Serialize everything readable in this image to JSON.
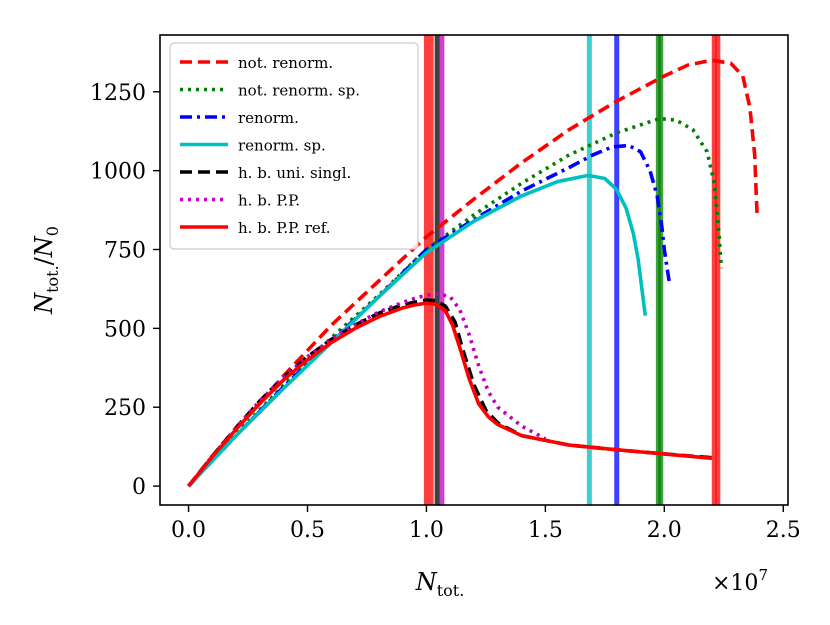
{
  "chart_data": {
    "type": "line",
    "title": "",
    "xlabel_main": "N",
    "xlabel_sub": "tot.",
    "ylabel_num_main": "N",
    "ylabel_num_sub": "tot.",
    "ylabel_den_main": "N",
    "ylabel_den_sub": "0",
    "x_scale_base": "×10",
    "x_scale_exp": "7",
    "xlim": [
      -0.12,
      2.52
    ],
    "ylim": [
      -60,
      1430
    ],
    "xticks": [
      0.0,
      0.5,
      1.0,
      1.5,
      2.0,
      2.5
    ],
    "xtick_labels": [
      "0.0",
      "0.5",
      "1.0",
      "1.5",
      "2.0",
      "2.5"
    ],
    "yticks": [
      0,
      250,
      500,
      750,
      1000,
      1250
    ],
    "ytick_labels": [
      "0",
      "250",
      "500",
      "750",
      "1000",
      "1250"
    ],
    "legend_position": "top-left",
    "series": [
      {
        "name": "not. renorm.",
        "color": "#ff0000",
        "dash": "dashed",
        "x": [
          0,
          0.2,
          0.4,
          0.6,
          0.8,
          1.0,
          1.2,
          1.4,
          1.6,
          1.8,
          2.0,
          2.1,
          2.2,
          2.28,
          2.33,
          2.36,
          2.38,
          2.385,
          2.39
        ],
        "y": [
          0,
          180,
          350,
          510,
          650,
          790,
          910,
          1025,
          1130,
          1220,
          1300,
          1335,
          1350,
          1340,
          1300,
          1200,
          1050,
          950,
          860
        ]
      },
      {
        "name": "not. renorm. sp.",
        "color": "#008000",
        "dash": "dotted",
        "x": [
          0,
          0.2,
          0.4,
          0.6,
          0.8,
          1.0,
          1.2,
          1.4,
          1.6,
          1.8,
          1.9,
          1.98,
          2.05,
          2.12,
          2.18,
          2.21,
          2.23,
          2.24
        ],
        "y": [
          0,
          165,
          320,
          470,
          605,
          750,
          860,
          960,
          1050,
          1120,
          1145,
          1165,
          1160,
          1130,
          1060,
          960,
          800,
          690
        ]
      },
      {
        "name": "renorm.",
        "color": "#0000ff",
        "dash": "dashdot",
        "x": [
          0,
          0.2,
          0.4,
          0.6,
          0.8,
          1.0,
          1.2,
          1.4,
          1.6,
          1.7,
          1.78,
          1.85,
          1.9,
          1.94,
          1.97,
          1.99,
          2.0,
          2.01,
          2.02
        ],
        "y": [
          0,
          160,
          315,
          460,
          600,
          750,
          845,
          935,
          1010,
          1050,
          1075,
          1080,
          1060,
          1000,
          920,
          820,
          750,
          700,
          650
        ]
      },
      {
        "name": "renorm. sp.",
        "color": "#00bfbf",
        "dash": "solid",
        "x": [
          0,
          0.2,
          0.4,
          0.6,
          0.8,
          1.0,
          1.2,
          1.4,
          1.55,
          1.68,
          1.75,
          1.8,
          1.84,
          1.87,
          1.89,
          1.9,
          1.91,
          1.92
        ],
        "y": [
          0,
          160,
          310,
          455,
          600,
          740,
          840,
          920,
          965,
          985,
          975,
          940,
          880,
          800,
          720,
          660,
          600,
          540
        ]
      },
      {
        "name": "h. b. uni. singl.",
        "color": "#000000",
        "dash": "dashed",
        "x": [
          0,
          0.1,
          0.2,
          0.3,
          0.4,
          0.5,
          0.6,
          0.7,
          0.8,
          0.9,
          0.95,
          1.0,
          1.04,
          1.08,
          1.12,
          1.15,
          1.2,
          1.25,
          1.3,
          1.4,
          1.6,
          1.8,
          2.0,
          2.2
        ],
        "y": [
          0,
          95,
          185,
          270,
          345,
          410,
          465,
          510,
          548,
          575,
          583,
          590,
          588,
          570,
          520,
          440,
          320,
          240,
          200,
          160,
          130,
          115,
          102,
          90
        ]
      },
      {
        "name": "h. b. P.P.",
        "color": "#bf00bf",
        "dash": "dotted",
        "x": [
          0,
          0.1,
          0.2,
          0.3,
          0.4,
          0.5,
          0.6,
          0.7,
          0.8,
          0.9,
          0.95,
          1.0,
          1.05,
          1.1,
          1.14,
          1.18,
          1.22,
          1.26,
          1.3,
          1.4,
          1.5
        ],
        "y": [
          0,
          95,
          185,
          270,
          345,
          410,
          465,
          512,
          552,
          582,
          595,
          605,
          610,
          600,
          560,
          480,
          380,
          300,
          250,
          190,
          150
        ]
      },
      {
        "name": "h. b. P.P. ref.",
        "color": "#ff0000",
        "dash": "solid",
        "x": [
          0,
          0.1,
          0.2,
          0.3,
          0.4,
          0.5,
          0.6,
          0.7,
          0.8,
          0.9,
          0.95,
          1.0,
          1.04,
          1.08,
          1.11,
          1.14,
          1.18,
          1.22,
          1.26,
          1.3,
          1.4,
          1.6,
          1.8,
          2.0,
          2.2
        ],
        "y": [
          0,
          93,
          180,
          262,
          337,
          400,
          455,
          500,
          537,
          565,
          574,
          580,
          576,
          555,
          510,
          440,
          340,
          260,
          220,
          195,
          160,
          130,
          115,
          102,
          88
        ]
      }
    ],
    "vertical_lines": [
      {
        "x": 1.0,
        "color": "#ff0000"
      },
      {
        "x": 1.02,
        "color": "#ff0000"
      },
      {
        "x": 1.045,
        "color": "#000000"
      },
      {
        "x": 1.065,
        "color": "#bf00bf"
      },
      {
        "x": 1.685,
        "color": "#00bfbf"
      },
      {
        "x": 1.8,
        "color": "#0000ff"
      },
      {
        "x": 1.975,
        "color": "#008000"
      },
      {
        "x": 1.985,
        "color": "#008000"
      },
      {
        "x": 2.21,
        "color": "#ff0000"
      },
      {
        "x": 2.225,
        "color": "#ff0000"
      }
    ]
  }
}
